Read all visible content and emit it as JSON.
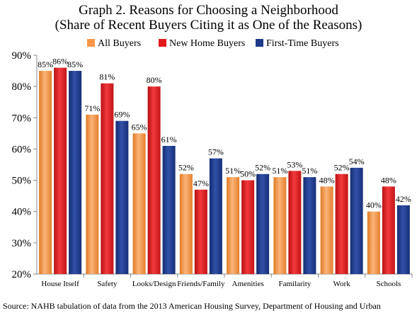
{
  "chart_data": {
    "type": "bar",
    "title": "Graph 2. Reasons for Choosing a Neighborhood",
    "subtitle": "(Share of Recent Buyers Citing it as One of the Reasons)",
    "categories": [
      "House Itself",
      "Safety",
      "Looks/Design",
      "Friends/Family",
      "Amenities",
      "Familarity",
      "Work",
      "Schools"
    ],
    "series": [
      {
        "name": "All Buyers",
        "color": "#F79646",
        "values": [
          85,
          71,
          65,
          52,
          51,
          51,
          48,
          40
        ],
        "labels": [
          "85%",
          "71%",
          "65%",
          "52%",
          "51%",
          "51%",
          "48%",
          "40%"
        ]
      },
      {
        "name": "New Home Buyers",
        "color": "#E31A1C",
        "values": [
          86,
          81,
          80,
          47,
          50,
          53,
          52,
          48
        ],
        "labels": [
          "86%",
          "81%",
          "80%",
          "47%",
          "50%",
          "53%",
          "52%",
          "48%"
        ]
      },
      {
        "name": "First-Time Buyers",
        "color": "#1F3A8A",
        "values": [
          85,
          69,
          61,
          57,
          52,
          51,
          54,
          42
        ],
        "labels": [
          "85%",
          "69%",
          "61%",
          "57%",
          "52%",
          "51%",
          "54%",
          "42%"
        ]
      }
    ],
    "ylim": [
      20,
      90
    ],
    "yticks": [
      20,
      30,
      40,
      50,
      60,
      70,
      80,
      90
    ],
    "ytick_labels": [
      "20%",
      "30%",
      "40%",
      "50%",
      "60%",
      "70%",
      "80%",
      "90%"
    ],
    "xlabel": "",
    "ylabel": "",
    "grid": false,
    "legend_position": "top",
    "source": "Source: NAHB tabulation of data from the 2013 American Housing Survey, Department of Housing and Urban"
  }
}
